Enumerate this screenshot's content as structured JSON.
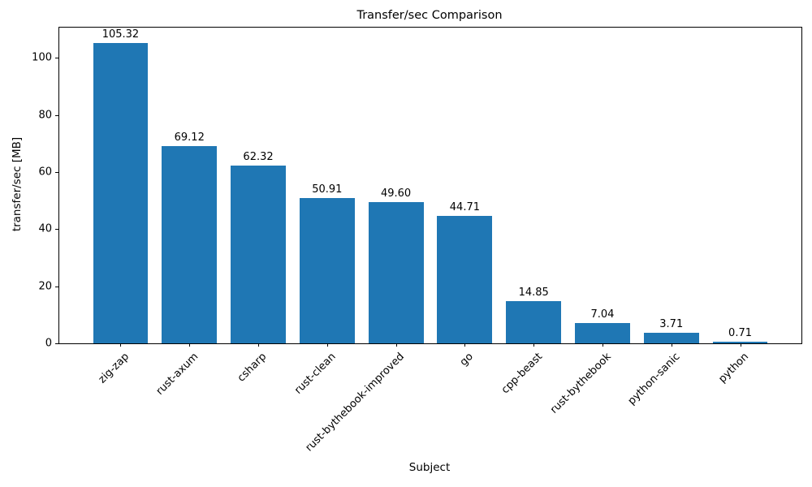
{
  "chart_data": {
    "type": "bar",
    "title": "Transfer/sec Comparison",
    "xlabel": "Subject",
    "ylabel": "transfer/sec [MB]",
    "categories": [
      "zig-zap",
      "rust-axum",
      "csharp",
      "rust-clean",
      "rust-bythebook-improved",
      "go",
      "cpp-beast",
      "rust-bythebook",
      "python-sanic",
      "python"
    ],
    "values": [
      105.32,
      69.12,
      62.32,
      50.91,
      49.6,
      44.71,
      14.85,
      7.04,
      3.71,
      0.71
    ],
    "value_labels": [
      "105.32",
      "69.12",
      "62.32",
      "50.91",
      "49.60",
      "44.71",
      "14.85",
      "7.04",
      "3.71",
      "0.71"
    ],
    "yticks": [
      0,
      20,
      40,
      60,
      80,
      100
    ],
    "ylim": [
      0,
      110.6
    ],
    "bar_color": "#1f77b4",
    "bar_width_fraction": 0.8,
    "x_margin_fraction": 0.05,
    "grid": false,
    "legend": null,
    "x_tick_rotation_deg": 45
  }
}
